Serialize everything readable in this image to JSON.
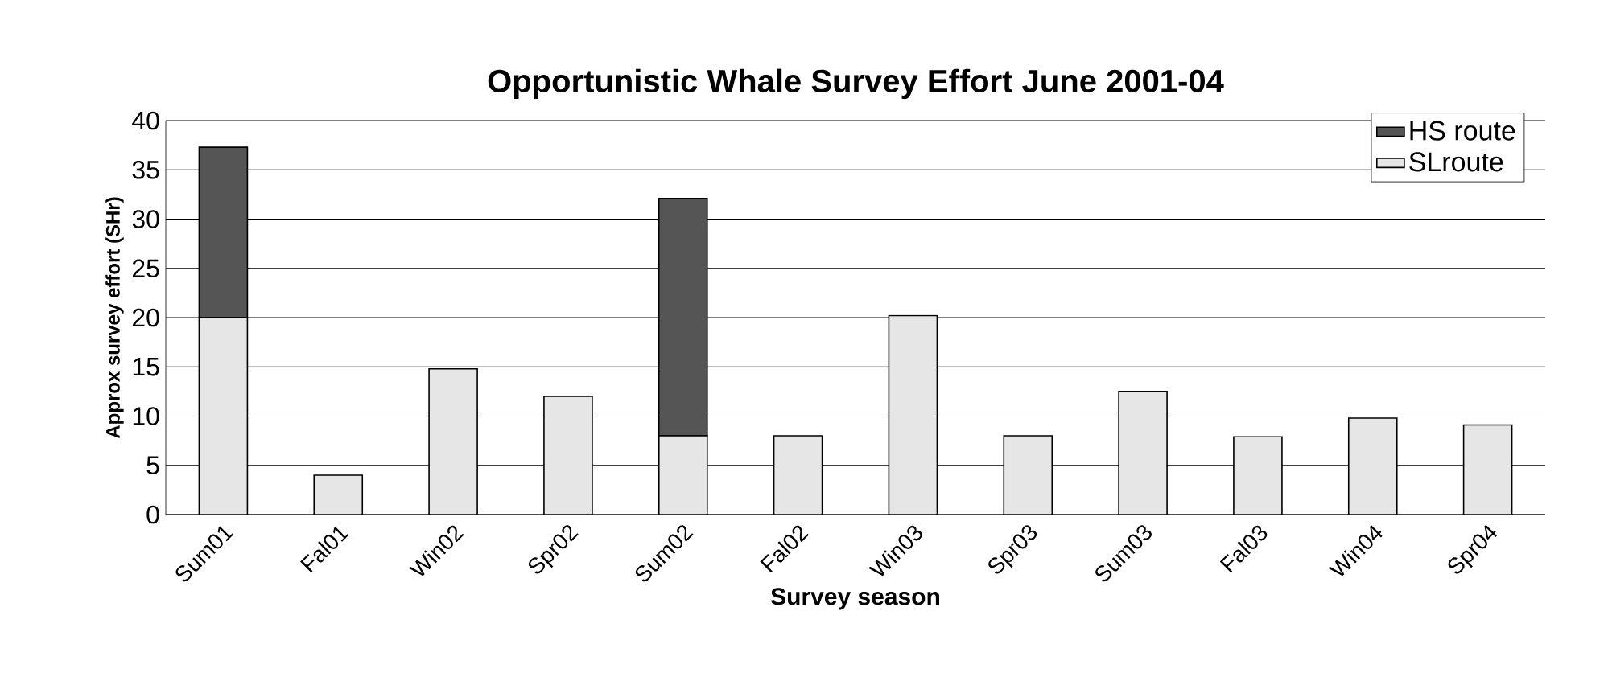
{
  "chart_data": {
    "type": "bar",
    "title": "Opportunistic Whale Survey Effort June 2001-04",
    "xlabel": "Survey season",
    "ylabel": "Approx survey effort (SHr)",
    "categories": [
      "Sum01",
      "Fal01",
      "Win02",
      "Spr02",
      "Sum02",
      "Fal02",
      "Win03",
      "Spr03",
      "Sum03",
      "Fal03",
      "Win04",
      "Spr04"
    ],
    "series": [
      {
        "name": "SLroute",
        "color": "#e6e6e6",
        "values": [
          20,
          4,
          14.8,
          12,
          8,
          8,
          20.2,
          8,
          12.5,
          7.9,
          9.8,
          9.1
        ]
      },
      {
        "name": "HS route",
        "color": "#555555",
        "values": [
          17.3,
          null,
          null,
          null,
          24.1,
          null,
          null,
          null,
          null,
          null,
          null,
          null
        ]
      }
    ],
    "stacked": true,
    "ylim": [
      0,
      40
    ],
    "yticks": [
      0,
      5,
      10,
      15,
      20,
      25,
      30,
      35,
      40
    ],
    "grid": "y",
    "legend": "top right"
  }
}
